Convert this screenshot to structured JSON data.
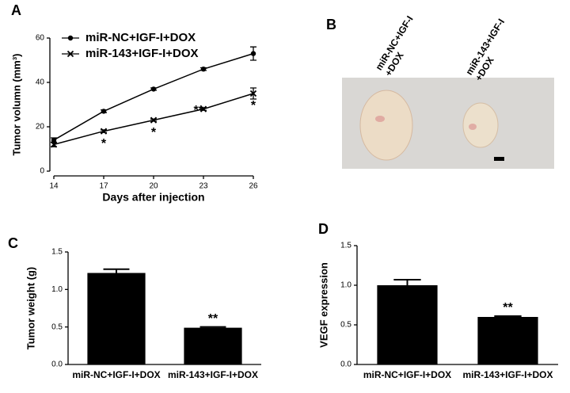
{
  "chart_data": [
    {
      "type": "line",
      "panel_label": "A",
      "xlabel": "Days after injection",
      "ylabel": "Tumor volumn (mm³)",
      "x": [
        14,
        17,
        20,
        23,
        26
      ],
      "xlim": [
        14,
        26
      ],
      "xticks": [
        14,
        17,
        20,
        23,
        26
      ],
      "ylim": [
        0,
        60
      ],
      "yticks": [
        0,
        20,
        40,
        60
      ],
      "legend": "upper left",
      "series": [
        {
          "name": "miR-NC+IGF-I+DOX",
          "color": "#000000",
          "marker": "circle",
          "values": [
            14,
            27,
            37,
            46,
            53
          ],
          "errors": [
            1,
            0.6,
            0.5,
            0.6,
            3
          ]
        },
        {
          "name": "miR-143+IGF-I+DOX",
          "color": "#000000",
          "marker": "x",
          "values": [
            12,
            18,
            23,
            28,
            35
          ],
          "errors": [
            1,
            0.6,
            0.5,
            0.6,
            2.5
          ]
        }
      ],
      "annotations": [
        {
          "x": 17,
          "text": "*"
        },
        {
          "x": 20,
          "text": "*"
        },
        {
          "x": 23,
          "text": "**"
        },
        {
          "x": 26,
          "text": "*"
        }
      ]
    },
    {
      "type": "bar",
      "panel_label": "C",
      "ylabel": "Tumor weight (g)",
      "color": "#000000",
      "categories": [
        "miR-NC+IGF-I+DOX",
        "miR-143+IGF-I+DOX"
      ],
      "values": [
        1.22,
        0.49
      ],
      "errors": [
        0.05,
        0.01
      ],
      "ylim": [
        0,
        1.5
      ],
      "yticks": [
        {
          "value": 0,
          "label": "0.0"
        },
        {
          "value": 0.5,
          "label": "0.5"
        },
        {
          "value": 1,
          "label": "1.0"
        },
        {
          "value": 1.5,
          "label": "1.5"
        }
      ],
      "annotations": [
        {
          "category": "miR-143+IGF-I+DOX",
          "text": "**"
        }
      ]
    },
    {
      "type": "bar",
      "panel_label": "D",
      "ylabel": "VEGF expression",
      "color": "#000000",
      "categories": [
        "miR-NC+IGF-I+DOX",
        "miR-143+IGF-I+DOX"
      ],
      "values": [
        1.0,
        0.6
      ],
      "errors": [
        0.07,
        0.01
      ],
      "ylim": [
        0,
        1.5
      ],
      "yticks": [
        {
          "value": 0,
          "label": "0.0"
        },
        {
          "value": 0.5,
          "label": "0.5"
        },
        {
          "value": 1,
          "label": "1.0"
        },
        {
          "value": 1.5,
          "label": "1.5"
        }
      ],
      "annotations": [
        {
          "category": "miR-143+IGF-I+DOX",
          "text": "**"
        }
      ]
    }
  ],
  "figure_b": {
    "panel_label": "B",
    "sample_labels": [
      [
        "miR-NC+IGF-I",
        "+DOX"
      ],
      [
        "miR-143+IGF-I",
        "+DOX"
      ]
    ]
  }
}
